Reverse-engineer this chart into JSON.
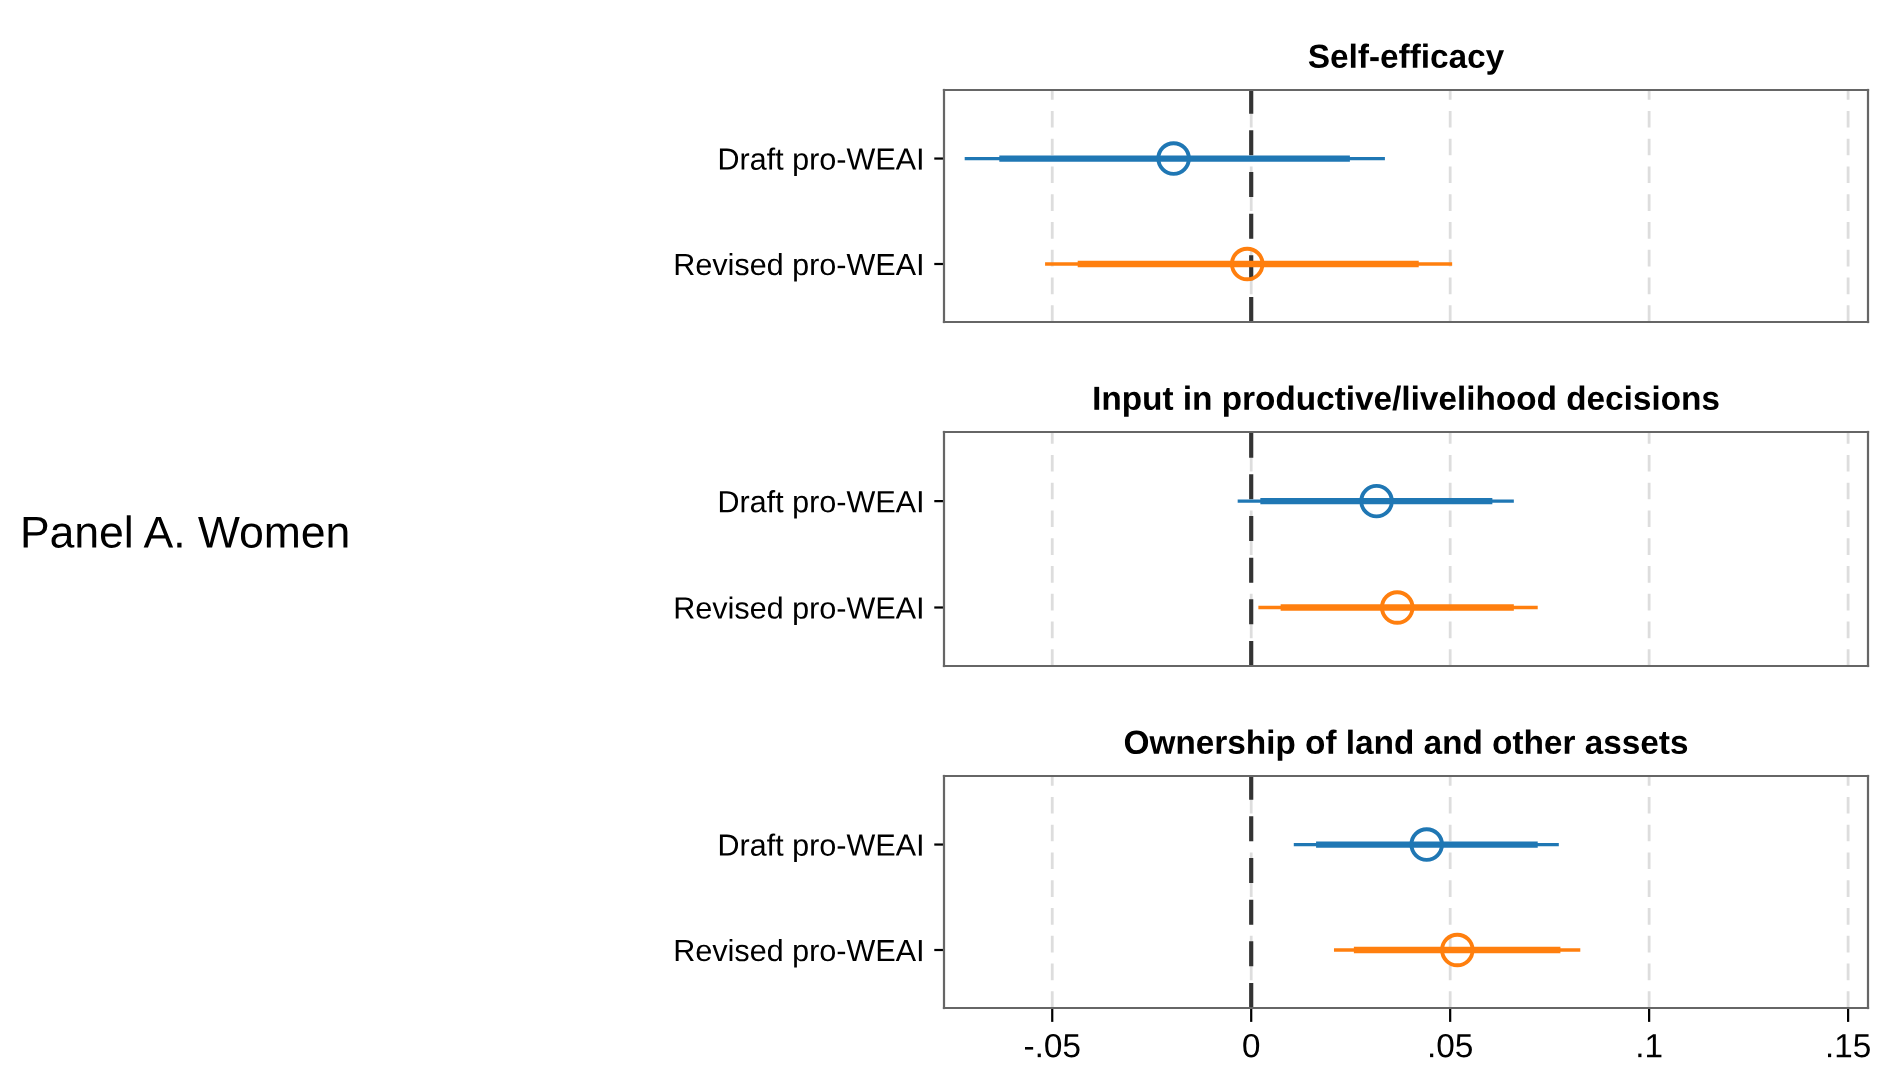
{
  "chart_data": [
    {
      "type": "scatter",
      "orientation": "horizontal",
      "title": "Self-efficacy",
      "categories": [
        "Draft pro-WEAI",
        "Revised pro-WEAI"
      ],
      "annotations": [
        "Panel A. Women"
      ],
      "series": [
        {
          "type": "bar",
          "base": [
            -0.0633,
            -0.0436
          ],
          "values": [
            0.0881,
            0.0857
          ],
          "colors": [
            "#1f77b4",
            "#ff7f0e"
          ]
        },
        {
          "values": [
            -0.0195,
            -0.001
          ],
          "errors": [
            [
              -0.072,
              0.0336
            ],
            [
              -0.0518,
              0.0505
            ]
          ],
          "colors": [
            "#1f77b4",
            "#ff7f0e"
          ]
        }
      ],
      "xlim": [
        -0.0772,
        0.155
      ],
      "xticks": [
        {
          "value": -0.05,
          "label": null
        },
        {
          "value": 0,
          "label": null
        },
        {
          "value": 0.05,
          "label": null
        },
        {
          "value": 0.1,
          "label": null
        },
        {
          "value": 0.15,
          "label": null
        }
      ],
      "ref_lines": [
        {
          "axis": "x",
          "value": 0,
          "label": null,
          "color": "#333333",
          "line_style": "dashed"
        }
      ],
      "grid": "x",
      "marker": "circle",
      "tick_labels": "y"
    },
    {
      "type": "scatter",
      "orientation": "horizontal",
      "title": "Input in productive/livelihood decisions",
      "categories": [
        "Draft pro-WEAI",
        "Revised pro-WEAI"
      ],
      "series": [
        {
          "type": "bar",
          "base": [
            0.0023,
            0.0074
          ],
          "values": [
            0.0583,
            0.0586
          ],
          "colors": [
            "#1f77b4",
            "#ff7f0e"
          ]
        },
        {
          "values": [
            0.0315,
            0.0367
          ],
          "errors": [
            [
              -0.0034,
              0.066
            ],
            [
              0.0018,
              0.072
            ]
          ],
          "colors": [
            "#1f77b4",
            "#ff7f0e"
          ]
        }
      ],
      "xlim": [
        -0.0772,
        0.155
      ],
      "xticks": [
        {
          "value": -0.05,
          "label": null
        },
        {
          "value": 0,
          "label": null
        },
        {
          "value": 0.05,
          "label": null
        },
        {
          "value": 0.1,
          "label": null
        },
        {
          "value": 0.15,
          "label": null
        }
      ],
      "ref_lines": [
        {
          "axis": "x",
          "value": 0,
          "label": null,
          "color": "#333333",
          "line_style": "dashed"
        }
      ],
      "grid": "x",
      "marker": "circle",
      "tick_labels": "y"
    },
    {
      "type": "scatter",
      "orientation": "horizontal",
      "title": "Ownership of land and other assets",
      "categories": [
        "Draft pro-WEAI",
        "Revised pro-WEAI"
      ],
      "series": [
        {
          "type": "bar",
          "base": [
            0.0163,
            0.0258
          ],
          "values": [
            0.0557,
            0.0519
          ],
          "colors": [
            "#1f77b4",
            "#ff7f0e"
          ]
        },
        {
          "values": [
            0.0441,
            0.0518
          ],
          "errors": [
            [
              0.0107,
              0.0773
            ],
            [
              0.0208,
              0.0827
            ]
          ],
          "colors": [
            "#1f77b4",
            "#ff7f0e"
          ]
        }
      ],
      "xlim": [
        -0.0772,
        0.155
      ],
      "xticks": [
        {
          "value": -0.05,
          "label": "-.05"
        },
        0,
        {
          "value": 0.05,
          "label": ".05"
        },
        {
          "value": 0.1,
          "label": ".1"
        },
        {
          "value": 0.15,
          "label": ".15"
        }
      ],
      "ref_lines": [
        {
          "axis": "x",
          "value": 0,
          "label": null,
          "color": "#333333",
          "line_style": "dashed"
        }
      ],
      "grid": "x",
      "marker": "circle"
    }
  ]
}
